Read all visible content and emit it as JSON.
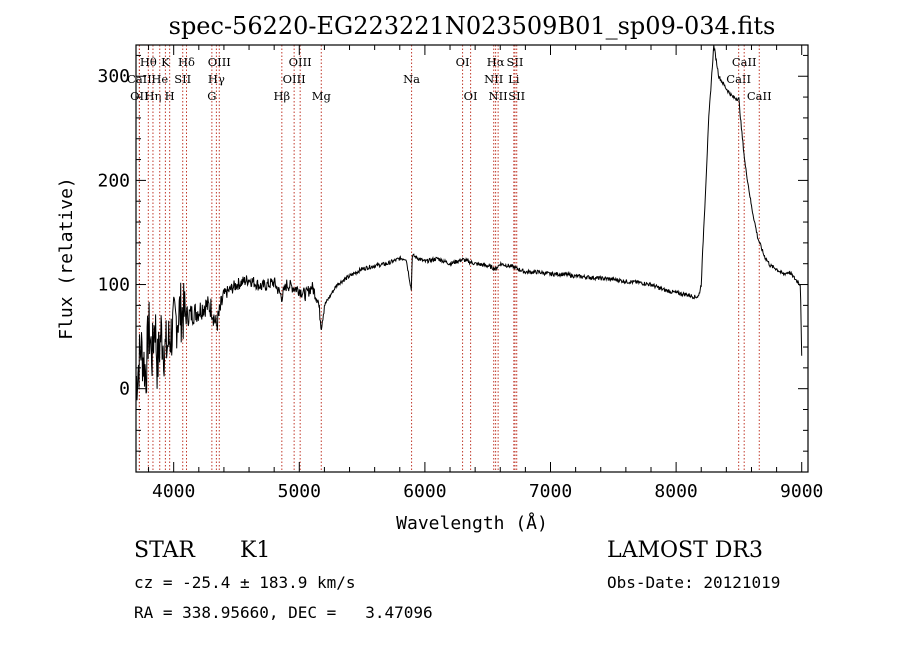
{
  "chart_data": {
    "type": "line",
    "title": "spec-56220-EG223221N023509B01_sp09-034.fits",
    "xlabel": "Wavelength (Å)",
    "ylabel": "Flux (relative)",
    "xlim": [
      3700,
      9050
    ],
    "ylim": [
      -80,
      330
    ],
    "xticks": [
      4000,
      5000,
      6000,
      7000,
      8000,
      9000
    ],
    "yticks": [
      0,
      100,
      200,
      300
    ],
    "series": [
      {
        "name": "spectrum",
        "x": [
          3700,
          3740,
          3780,
          3800,
          3830,
          3850,
          3870,
          3900,
          3930,
          3960,
          4000,
          4050,
          4100,
          4150,
          4200,
          4250,
          4300,
          4340,
          4400,
          4450,
          4500,
          4600,
          4700,
          4800,
          4861,
          4900,
          5000,
          5050,
          5100,
          5150,
          5175,
          5200,
          5300,
          5400,
          5500,
          5600,
          5700,
          5800,
          5850,
          5892,
          5900,
          6000,
          6100,
          6200,
          6300,
          6400,
          6500,
          6563,
          6600,
          6700,
          6800,
          6900,
          7000,
          7100,
          7200,
          7300,
          7400,
          7500,
          7600,
          7700,
          7800,
          7900,
          8000,
          8100,
          8150,
          8180,
          8200,
          8230,
          8260,
          8300,
          8340,
          8400,
          8450,
          8500,
          8520,
          8550,
          8600,
          8650,
          8700,
          8750,
          8800,
          8850,
          8900,
          8950,
          8990,
          9000
        ],
        "y": [
          5,
          40,
          15,
          60,
          30,
          70,
          20,
          55,
          35,
          45,
          60,
          75,
          70,
          72,
          75,
          80,
          78,
          60,
          90,
          95,
          100,
          105,
          98,
          102,
          88,
          100,
          95,
          90,
          98,
          85,
          60,
          80,
          100,
          108,
          115,
          118,
          120,
          125,
          125,
          95,
          128,
          122,
          125,
          120,
          124,
          120,
          118,
          115,
          120,
          117,
          112,
          112,
          110,
          110,
          108,
          107,
          106,
          105,
          103,
          102,
          100,
          95,
          92,
          90,
          88,
          89,
          100,
          180,
          260,
          330,
          300,
          288,
          280,
          278,
          250,
          215,
          175,
          145,
          128,
          118,
          115,
          110,
          112,
          105,
          100,
          30
        ]
      }
    ],
    "lines": [
      {
        "name": "OII",
        "wave": 3727,
        "row": 2
      },
      {
        "name": "CaII",
        "wave": 3727,
        "row": 1
      },
      {
        "name": "Hθ",
        "wave": 3798,
        "row": 0
      },
      {
        "name": "Hη",
        "wave": 3835,
        "row": 2
      },
      {
        "name": "He",
        "wave": 3889,
        "row": 1
      },
      {
        "name": "K",
        "wave": 3934,
        "row": 0
      },
      {
        "name": "H",
        "wave": 3968,
        "row": 2
      },
      {
        "name": "SII",
        "wave": 4072,
        "row": 1
      },
      {
        "name": "Hδ",
        "wave": 4102,
        "row": 0
      },
      {
        "name": "G",
        "wave": 4304,
        "row": 2
      },
      {
        "name": "Hγ",
        "wave": 4340,
        "row": 1
      },
      {
        "name": "OIII",
        "wave": 4363,
        "row": 0
      },
      {
        "name": "Hβ",
        "wave": 4861,
        "row": 2
      },
      {
        "name": "OIII",
        "wave": 4959,
        "row": 1
      },
      {
        "name": "OIII",
        "wave": 5007,
        "row": 0
      },
      {
        "name": "Mg",
        "wave": 5175,
        "row": 2
      },
      {
        "name": "Na",
        "wave": 5894,
        "row": 1
      },
      {
        "name": "OI",
        "wave": 6300,
        "row": 0
      },
      {
        "name": "OI",
        "wave": 6364,
        "row": 2
      },
      {
        "name": "NII",
        "wave": 6548,
        "row": 1
      },
      {
        "name": "Hα",
        "wave": 6563,
        "row": 0
      },
      {
        "name": "NII",
        "wave": 6583,
        "row": 2
      },
      {
        "name": "Li",
        "wave": 6708,
        "row": 1
      },
      {
        "name": "SII",
        "wave": 6717,
        "row": 0
      },
      {
        "name": "SII",
        "wave": 6731,
        "row": 2
      },
      {
        "name": "CaII",
        "wave": 8498,
        "row": 1
      },
      {
        "name": "CaII",
        "wave": 8542,
        "row": 0
      },
      {
        "name": "CaII",
        "wave": 8662,
        "row": 2
      }
    ]
  },
  "info": {
    "class": "STAR",
    "subclass": "K1",
    "survey": "LAMOST DR3",
    "cz": "cz = -25.4 ± 183.9 km/s",
    "obs_date": "Obs-Date: 20121019",
    "radec": "RA = 338.95660, DEC =   3.47096"
  }
}
